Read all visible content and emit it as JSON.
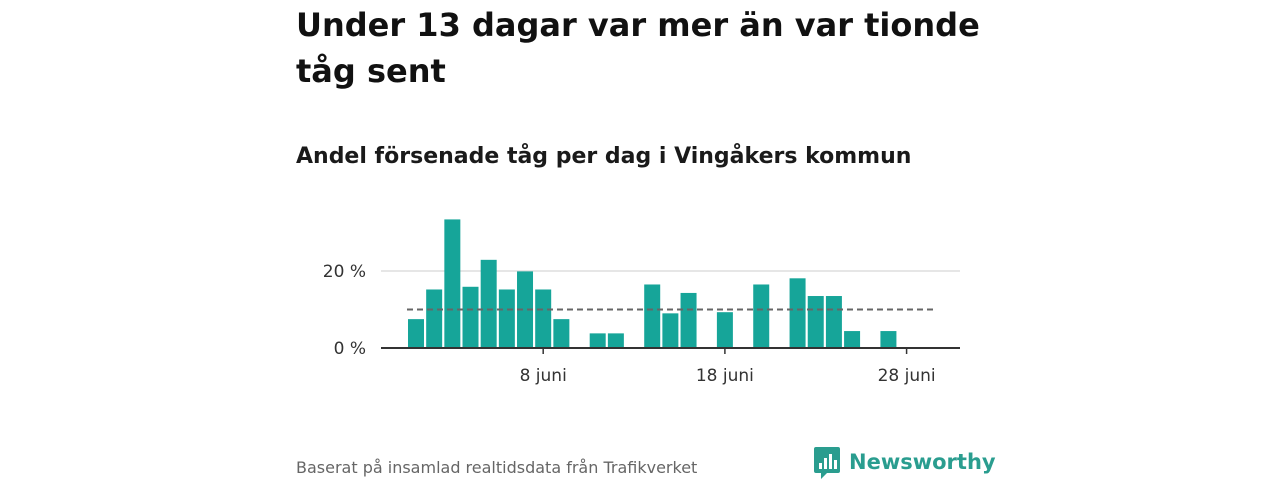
{
  "headline": "Under 13 dagar var mer än var tionde tåg sent",
  "subtitle": "Andel försenade tåg per dag i Vingåkers kommun",
  "source": "Baserat på insamlad realtidsdata från Trafikverket",
  "brand": {
    "name": "Newsworthy",
    "icon": "newsworthy-logo-icon"
  },
  "colors": {
    "bar": "#16a599",
    "gridline": "#dddddd",
    "reference": "#666666",
    "axis": "#333333",
    "brand": "#2a9d8f"
  },
  "chart_data": {
    "type": "bar",
    "title": "Andel försenade tåg per dag i Vingåkers kommun",
    "xlabel": "",
    "ylabel": "",
    "x_tick_labels": [
      "8 juni",
      "18 juni",
      "28 juni"
    ],
    "y_tick_labels": [
      "0 %",
      "20 %"
    ],
    "ylim": [
      0,
      35
    ],
    "grid": true,
    "reference_line": 10,
    "categories": [
      "1 juni",
      "2 juni",
      "3 juni",
      "4 juni",
      "5 juni",
      "6 juni",
      "7 juni",
      "8 juni",
      "9 juni",
      "10 juni",
      "11 juni",
      "12 juni",
      "13 juni",
      "14 juni",
      "15 juni",
      "16 juni",
      "17 juni",
      "18 juni",
      "19 juni",
      "20 juni",
      "21 juni",
      "22 juni",
      "23 juni",
      "24 juni",
      "25 juni",
      "26 juni",
      "27 juni",
      "28 juni",
      "29 juni",
      "30 juni"
    ],
    "values": [
      7.5,
      15.2,
      33.4,
      15.9,
      22.9,
      15.2,
      19.9,
      15.2,
      7.5,
      0,
      3.8,
      3.8,
      0,
      16.5,
      9.0,
      14.3,
      0,
      9.3,
      0,
      16.5,
      0,
      18.1,
      13.5,
      13.5,
      4.4,
      0,
      4.4,
      0,
      0,
      0
    ]
  }
}
